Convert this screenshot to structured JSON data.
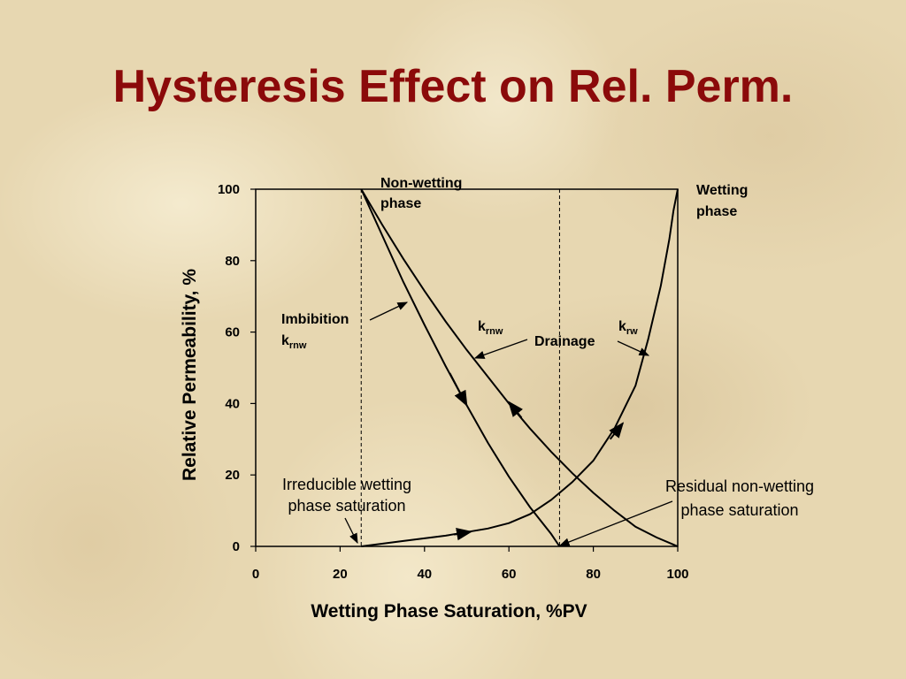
{
  "title": "Hysteresis Effect on Rel. Perm.",
  "chart_data": {
    "type": "line",
    "xlabel": "Wetting Phase Saturation, %PV",
    "ylabel": "Relative Permeability, %",
    "xlim": [
      0,
      100
    ],
    "ylim": [
      0,
      100
    ],
    "x_ticks": [
      "0",
      "20",
      "40",
      "60",
      "80",
      "100"
    ],
    "y_ticks": [
      "0",
      "20",
      "40",
      "60",
      "80",
      "100"
    ],
    "grid": false,
    "vertical_refs": [
      25,
      72
    ],
    "series": [
      {
        "key": "krw",
        "x": [
          25,
          35,
          45,
          50,
          55,
          60,
          65,
          70,
          75,
          80,
          85,
          90,
          93,
          96,
          98,
          99,
          100
        ],
        "y": [
          0,
          1.5,
          3,
          4,
          5,
          6.5,
          9,
          13,
          18,
          24,
          33,
          45,
          58,
          73,
          86,
          94,
          100
        ]
      },
      {
        "key": "krnw_drainage",
        "x": [
          25,
          30,
          35,
          40,
          45,
          50,
          55,
          60,
          65,
          70,
          75,
          80,
          85,
          90,
          95,
          100
        ],
        "y": [
          100,
          90,
          80.5,
          71.5,
          63,
          55,
          47.5,
          40,
          33,
          26.5,
          20.5,
          15,
          10,
          5.5,
          2.5,
          0
        ]
      },
      {
        "key": "krnw_imbibition",
        "x": [
          25,
          30,
          35,
          40,
          45,
          50,
          55,
          60,
          65,
          70,
          72
        ],
        "y": [
          100,
          87,
          74,
          62,
          50.5,
          39.5,
          29,
          19.5,
          11,
          3.5,
          0
        ]
      }
    ],
    "annotations": {
      "nonwetting": [
        "Non-wetting",
        "phase"
      ],
      "wetting": [
        "Wetting",
        "phase"
      ],
      "imbibition": {
        "label": "Imbibition",
        "k": "k",
        "sub": "rnw"
      },
      "drainage_k": {
        "k": "k",
        "sub": "rnw"
      },
      "drainage": "Drainage",
      "krw": {
        "k": "k",
        "sub": "rw"
      },
      "irreducible": [
        "Irreducible wetting",
        "phase saturation"
      ],
      "residual": [
        "Residual non-wetting",
        "phase saturation"
      ]
    }
  }
}
